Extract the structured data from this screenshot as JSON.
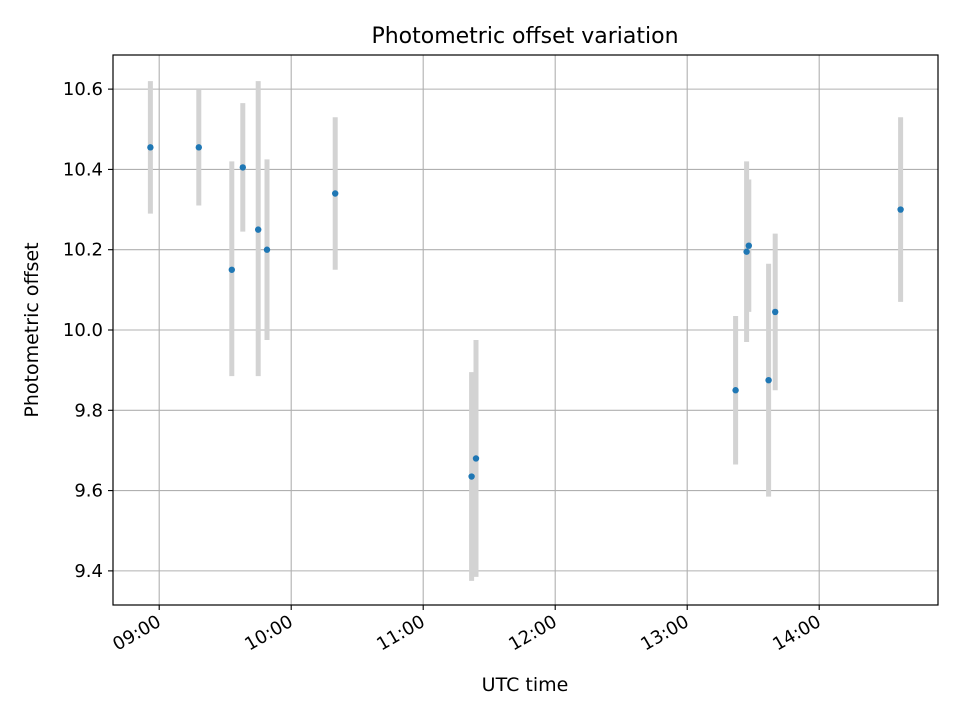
{
  "chart_data": {
    "type": "scatter",
    "title": "Photometric offset variation",
    "xlabel": "UTC time",
    "ylabel": "Photometric offset",
    "x_ticks": [
      "09:00",
      "10:00",
      "11:00",
      "12:00",
      "13:00",
      "14:00"
    ],
    "y_ticks": [
      "9.4",
      "9.6",
      "9.8",
      "10.0",
      "10.2",
      "10.4",
      "10.6"
    ],
    "xlim": [
      "08:39",
      "14:54"
    ],
    "ylim": [
      9.315,
      10.685
    ],
    "grid": true,
    "marker_color": "#1f77b4",
    "errorbar_color": "#d3d3d3",
    "points": [
      {
        "x": "08:56",
        "y": 10.455,
        "low": 10.29,
        "high": 10.62
      },
      {
        "x": "09:18",
        "y": 10.455,
        "low": 10.31,
        "high": 10.6
      },
      {
        "x": "09:33",
        "y": 10.15,
        "low": 9.885,
        "high": 10.42
      },
      {
        "x": "09:38",
        "y": 10.405,
        "low": 10.245,
        "high": 10.565
      },
      {
        "x": "09:45",
        "y": 10.25,
        "low": 9.885,
        "high": 10.62
      },
      {
        "x": "09:49",
        "y": 10.2,
        "low": 9.975,
        "high": 10.425
      },
      {
        "x": "10:20",
        "y": 10.34,
        "low": 10.15,
        "high": 10.53
      },
      {
        "x": "11:22",
        "y": 9.635,
        "low": 9.375,
        "high": 9.895
      },
      {
        "x": "11:24",
        "y": 9.68,
        "low": 9.385,
        "high": 9.975
      },
      {
        "x": "13:22",
        "y": 9.85,
        "low": 9.665,
        "high": 10.035
      },
      {
        "x": "13:27",
        "y": 10.195,
        "low": 9.97,
        "high": 10.42
      },
      {
        "x": "13:28",
        "y": 10.21,
        "low": 10.045,
        "high": 10.375
      },
      {
        "x": "13:37",
        "y": 9.875,
        "low": 9.585,
        "high": 10.165
      },
      {
        "x": "13:40",
        "y": 10.045,
        "low": 9.85,
        "high": 10.24
      },
      {
        "x": "14:37",
        "y": 10.3,
        "low": 10.07,
        "high": 10.53
      }
    ]
  }
}
